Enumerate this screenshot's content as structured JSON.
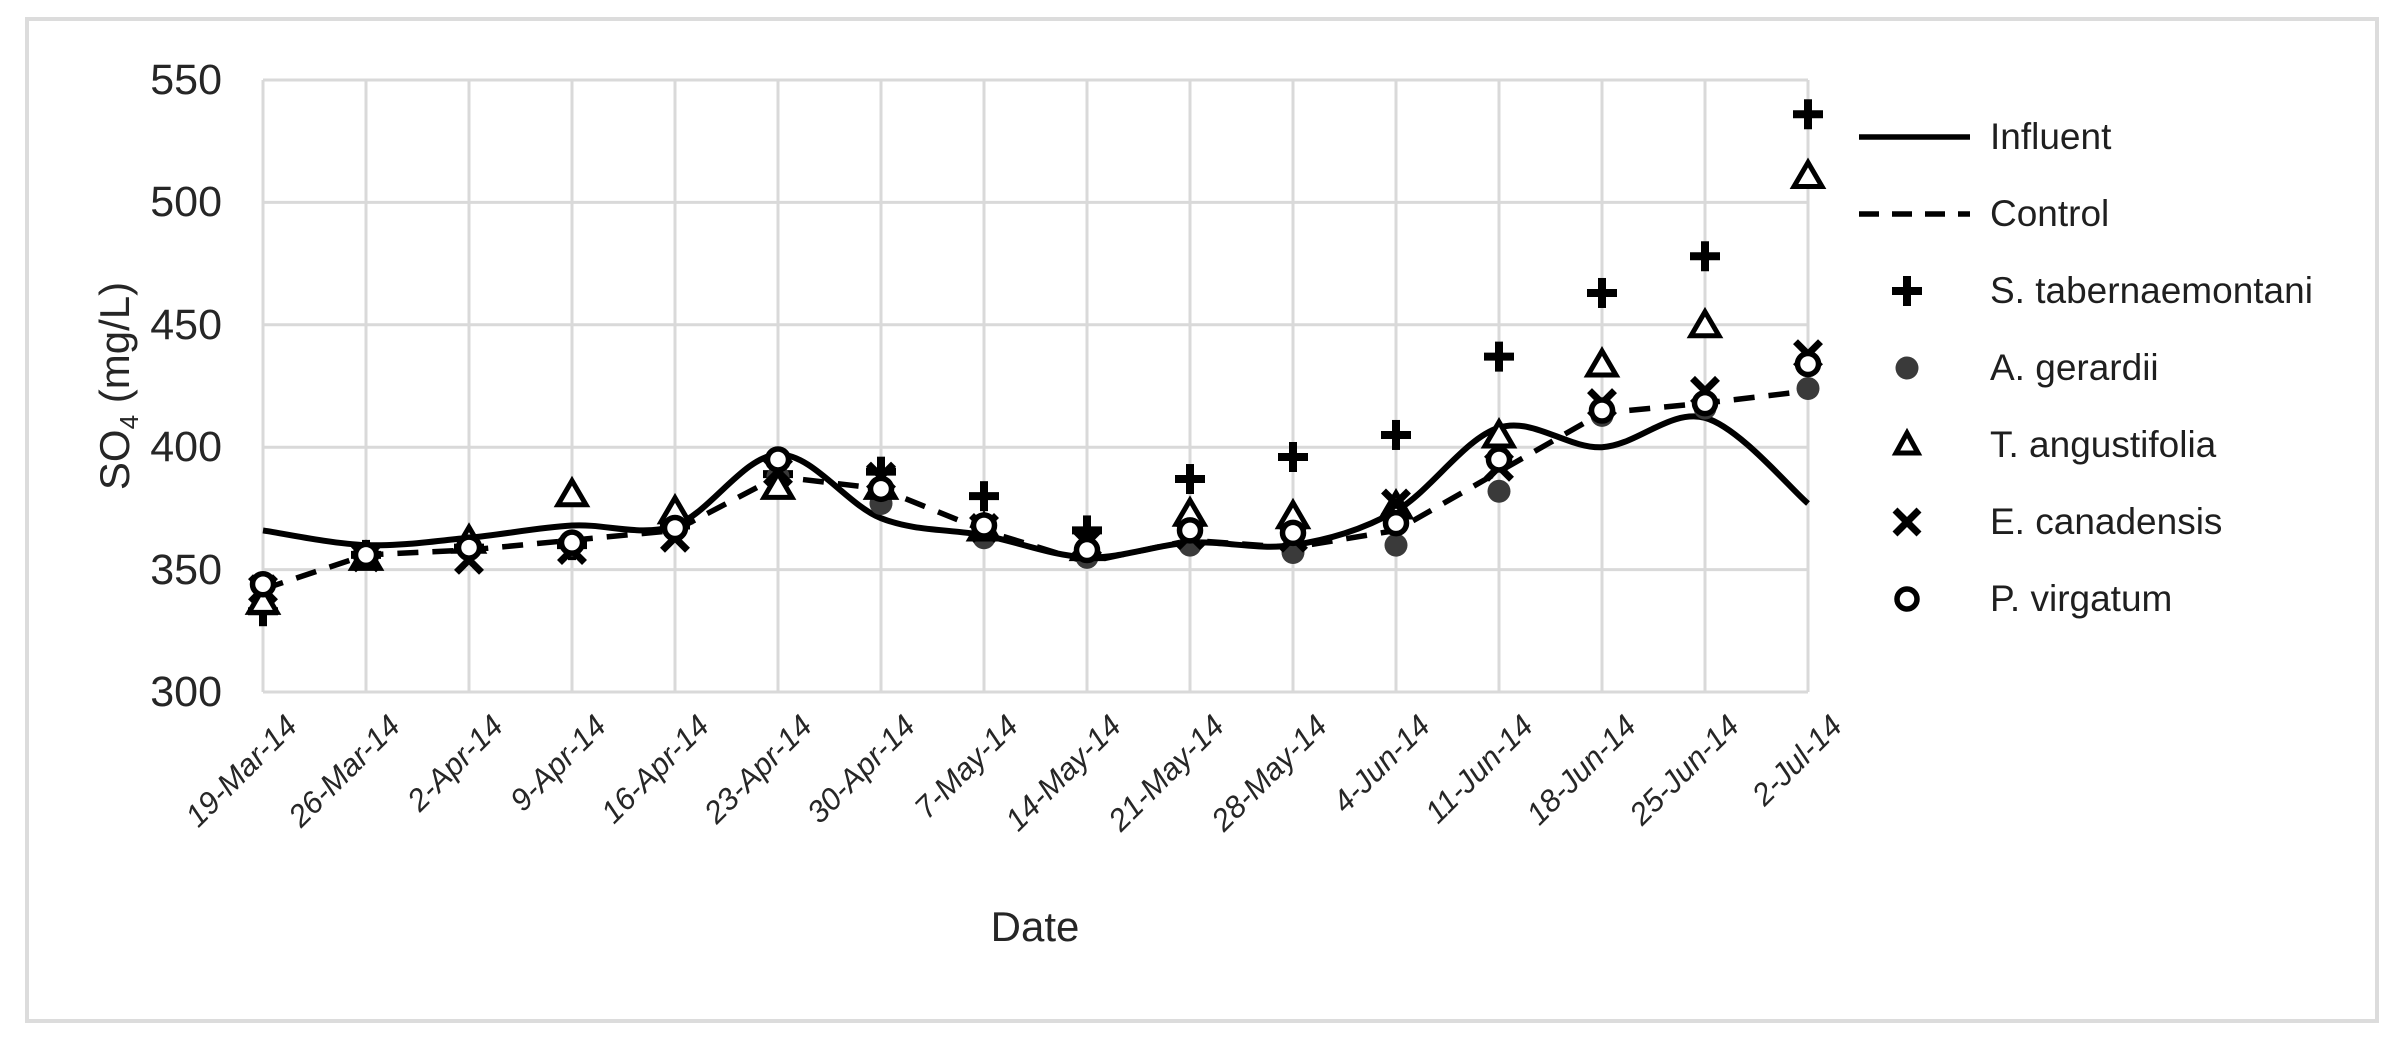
{
  "chart_data": {
    "type": "line",
    "title": "",
    "xlabel": "Date",
    "ylabel": "SO4 (mg/L)",
    "ylabel_base": "SO",
    "ylabel_sub": "4",
    "ylabel_unit": " (mg/L)",
    "ylim": [
      300,
      550
    ],
    "yticks": [
      300,
      350,
      400,
      450,
      500,
      550
    ],
    "grid": true,
    "legend_position": "right",
    "categories": [
      "19-Mar-14",
      "26-Mar-14",
      "2-Apr-14",
      "9-Apr-14",
      "16-Apr-14",
      "23-Apr-14",
      "30-Apr-14",
      "7-May-14",
      "14-May-14",
      "21-May-14",
      "28-May-14",
      "4-Jun-14",
      "11-Jun-14",
      "18-Jun-14",
      "25-Jun-14",
      "2-Jul-14"
    ],
    "series": [
      {
        "name": "Influent",
        "kind": "line",
        "line_style": "solid",
        "smooth": true,
        "marker": "none",
        "values": [
          366,
          360,
          363,
          368,
          368,
          397,
          371,
          364,
          355,
          361,
          360,
          374,
          408,
          400,
          412,
          377
        ]
      },
      {
        "name": "Control",
        "kind": "line",
        "line_style": "dashed",
        "smooth": false,
        "marker": "none",
        "values": [
          342,
          356,
          358,
          362,
          366,
          388,
          383,
          366,
          353,
          362,
          359,
          366,
          390,
          414,
          418,
          423
        ]
      },
      {
        "name": "S. tabernaemontani",
        "kind": "scatter",
        "marker": "plus",
        "values": [
          333,
          356,
          359,
          360,
          368,
          389,
          390,
          380,
          366,
          387,
          396,
          405,
          437,
          463,
          478,
          536
        ]
      },
      {
        "name": "A. gerardii",
        "kind": "scatter",
        "marker": "circle-filled",
        "values": [
          343,
          356,
          358,
          360,
          366,
          388,
          377,
          363,
          355,
          360,
          357,
          360,
          382,
          413,
          416,
          424
        ]
      },
      {
        "name": "T. angustifolia",
        "kind": "scatter",
        "marker": "triangle-open",
        "values": [
          337,
          355,
          362,
          381,
          374,
          384,
          384,
          367,
          359,
          373,
          372,
          376,
          405,
          434,
          450,
          511
        ]
      },
      {
        "name": "E. canadensis",
        "kind": "scatter",
        "marker": "x",
        "values": [
          342,
          355,
          354,
          358,
          363,
          390,
          388,
          367,
          361,
          364,
          363,
          377,
          392,
          418,
          423,
          438
        ]
      },
      {
        "name": "P. virgatum",
        "kind": "scatter",
        "marker": "circle-open",
        "values": [
          344,
          356,
          359,
          361,
          367,
          395,
          383,
          368,
          358,
          366,
          365,
          369,
          395,
          415,
          418,
          434
        ]
      }
    ]
  },
  "colors": {
    "series_color": "#000000",
    "filled_marker": "#3a3a3a",
    "gridline": "#d9d9d9",
    "axis_text": "#262626",
    "figure_border": "#dcdcdc",
    "background": "#ffffff"
  }
}
